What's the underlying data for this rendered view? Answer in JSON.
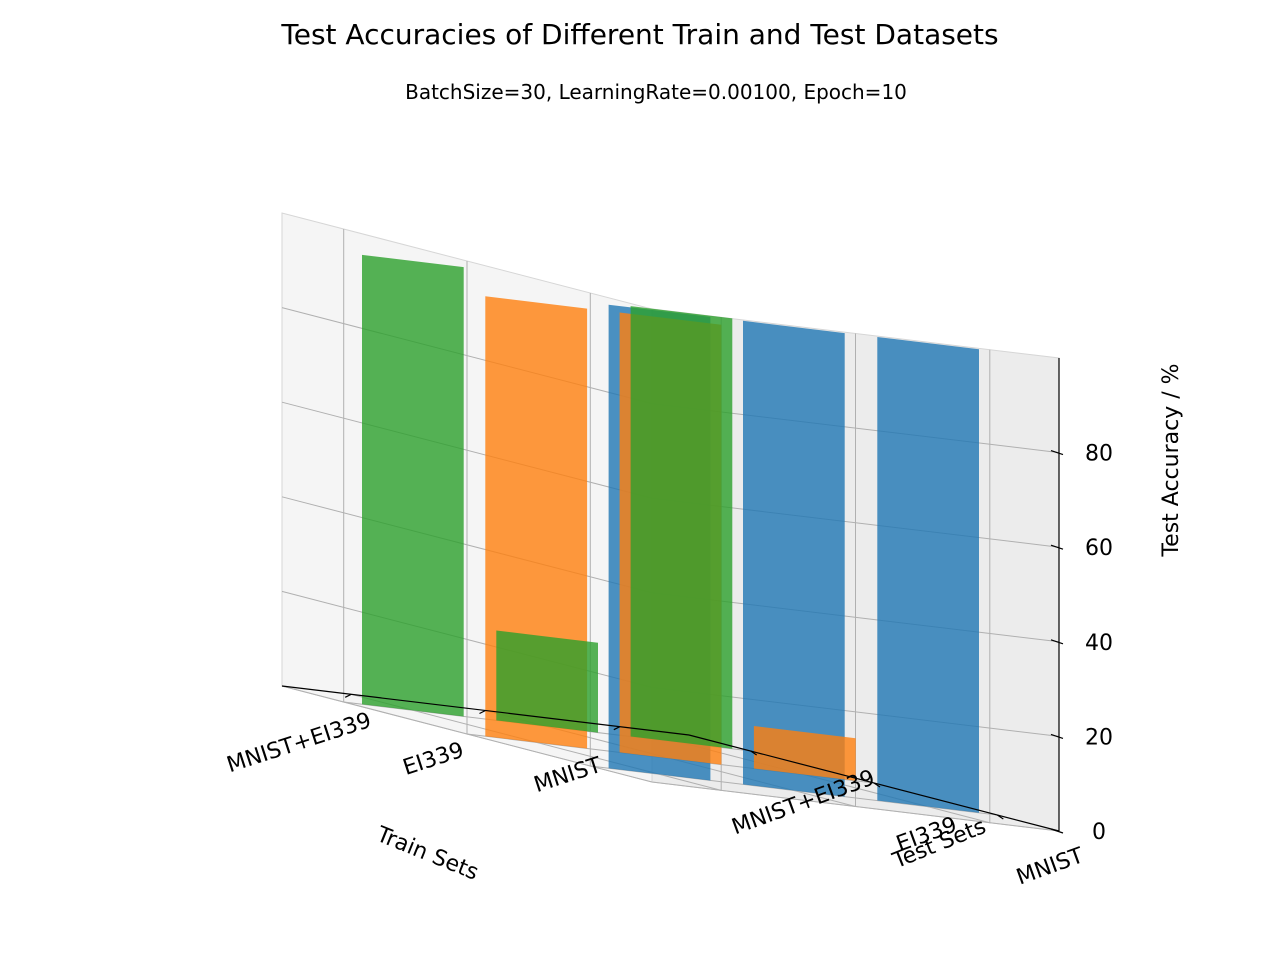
{
  "chart_data": {
    "type": "bar3d",
    "title": "Test Accuracies of Different Train and Test Datasets",
    "subtitle": "BatchSize=30, LearningRate=0.00100, Epoch=10",
    "xlabel": "Train Sets",
    "ylabel": "Test Sets",
    "zlabel": "Test Accuracy / %",
    "train_sets": [
      "MNIST+EI339",
      "EI339",
      "MNIST"
    ],
    "test_sets": [
      "MNIST+EI339",
      "EI339",
      "MNIST"
    ],
    "z_ticks": [
      0,
      20,
      40,
      60,
      80
    ],
    "zlim": [
      0,
      100
    ],
    "grid": true,
    "series": [
      {
        "test_set": "MNIST",
        "color": "#1f77b4",
        "values": [
          98.0,
          98.0,
          98.0
        ]
      },
      {
        "test_set": "EI339",
        "color": "#ff7f0e",
        "values": [
          93.0,
          93.0,
          9.0
        ]
      },
      {
        "test_set": "MNIST+EI339",
        "color": "#2ca02c",
        "values": [
          95.0,
          19.0,
          91.0
        ]
      }
    ]
  }
}
